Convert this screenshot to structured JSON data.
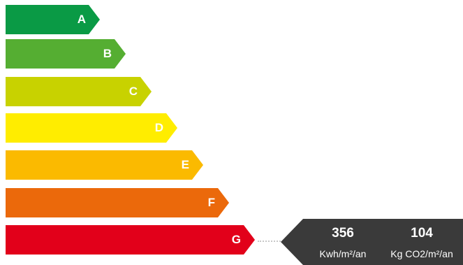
{
  "classes": [
    {
      "letter": "A",
      "color": "#0a9a45"
    },
    {
      "letter": "B",
      "color": "#55ae32"
    },
    {
      "letter": "C",
      "color": "#c8d200"
    },
    {
      "letter": "D",
      "color": "#ffed00"
    },
    {
      "letter": "E",
      "color": "#fbba00"
    },
    {
      "letter": "F",
      "color": "#eb690b"
    },
    {
      "letter": "G",
      "color": "#e2001a"
    }
  ],
  "current_class": "G",
  "result": {
    "energy_value": "356",
    "energy_unit": "Kwh/m²/an",
    "ges_value": "104",
    "ges_unit": "Kg CO2/m²/an",
    "background_color": "#3a3a3a"
  },
  "footnote_color": "#e2001a"
}
